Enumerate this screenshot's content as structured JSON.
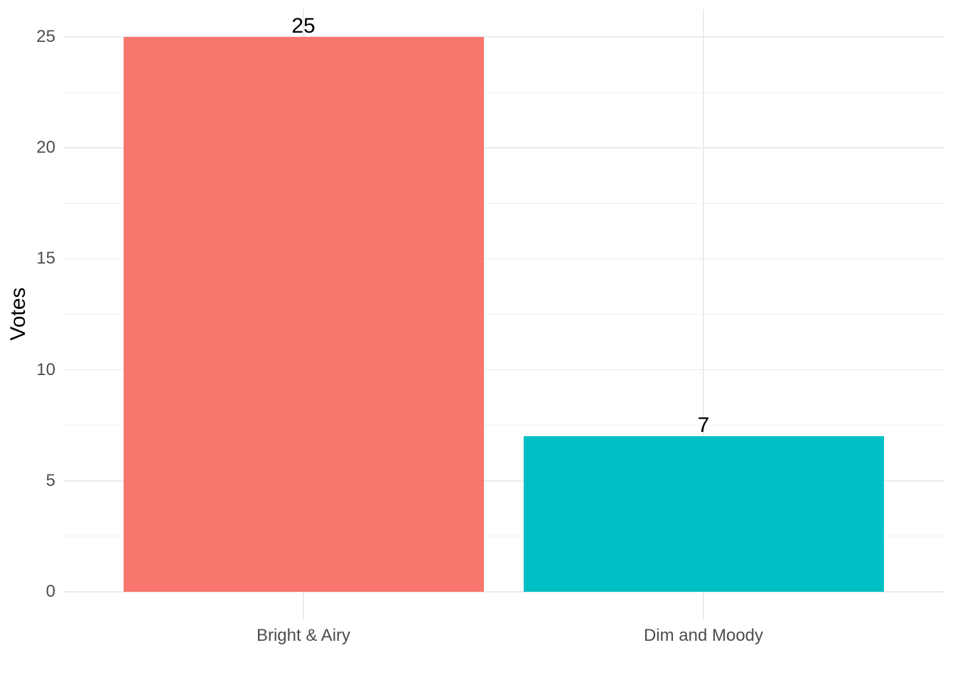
{
  "chart_data": {
    "type": "bar",
    "title": "",
    "categories": [
      "Bright & Airy",
      "Dim and Moody"
    ],
    "values": [
      25,
      7
    ],
    "data_labels": [
      "25",
      "7"
    ],
    "bar_colors": [
      "#F8766D",
      "#00BFC4"
    ],
    "xlabel": "",
    "ylabel": "Votes",
    "ylim": [
      0,
      25
    ],
    "yticks": [
      0,
      5,
      10,
      15,
      20,
      25
    ],
    "ytick_labels": [
      "0",
      "5",
      "10",
      "15",
      "20",
      "25"
    ],
    "minor_ytick_interval": 2.5,
    "grid": "on",
    "legend": "none",
    "background": "#FFFFFF",
    "gridline_color": "#EBEBEB",
    "minor_gridline_color": "#F0F0F0",
    "tick_label_color": "#4D4D4D",
    "axis_title_color": "#000000",
    "data_label_color": "#000000"
  }
}
